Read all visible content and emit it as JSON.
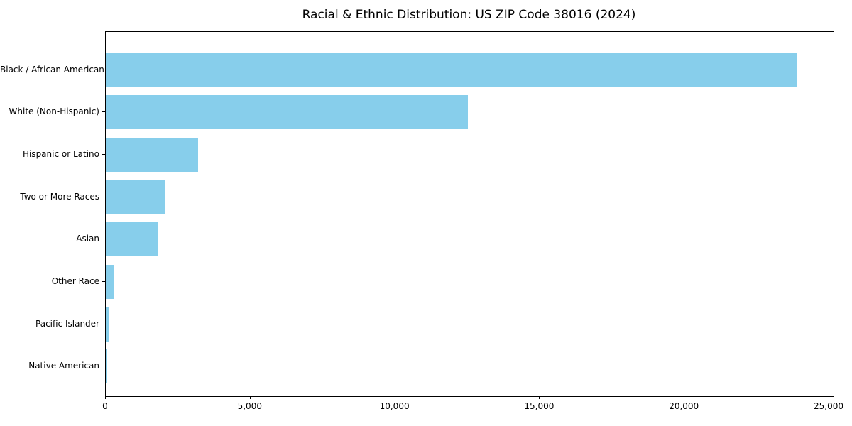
{
  "chart_data": {
    "type": "bar",
    "orientation": "horizontal",
    "title": "Racial & Ethnic Distribution: US ZIP Code 38016 (2024)",
    "categories": [
      "Black / African American",
      "White (Non-Hispanic)",
      "Hispanic or Latino",
      "Two or More Races",
      "Asian",
      "Other Race",
      "Pacific Islander",
      "Native American"
    ],
    "values": [
      23900,
      12520,
      3190,
      2060,
      1810,
      295,
      110,
      20
    ],
    "xlabel": "",
    "ylabel": "",
    "xlim": [
      0,
      25147
    ],
    "x_ticks": [
      0,
      5000,
      10000,
      15000,
      20000,
      25000
    ],
    "x_tick_labels": [
      "0",
      "5,000",
      "10,000",
      "15,000",
      "20,000",
      "25,000"
    ],
    "bar_color": "#87CEEB",
    "spine_color": "#000000",
    "text_color": "#000000",
    "grid": false,
    "legend": null
  }
}
